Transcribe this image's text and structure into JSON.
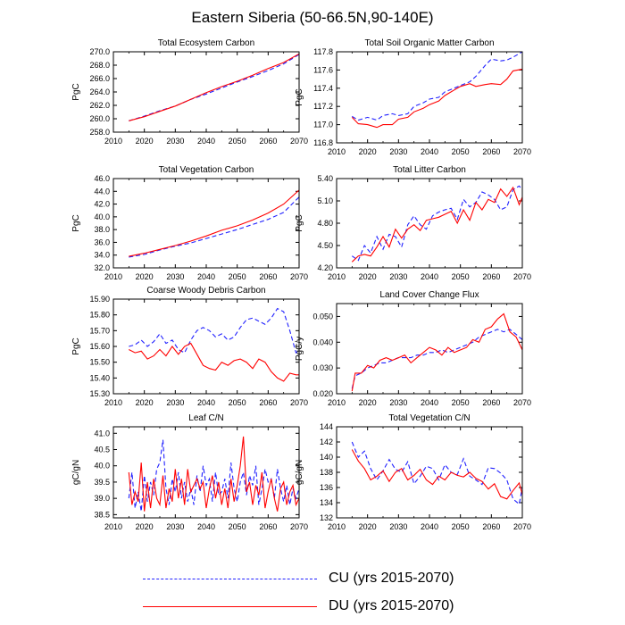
{
  "figure": {
    "title": "Eastern Siberia (50-66.5N,90-140E)",
    "series_styles": {
      "CU": {
        "color": "#2121ff",
        "dash": "dashed"
      },
      "DU": {
        "color": "#ff0000",
        "dash": "solid"
      }
    },
    "legend": [
      {
        "key": "CU",
        "label": "CU (yrs 2015-2070)"
      },
      {
        "key": "DU",
        "label": "DU (yrs 2015-2070)"
      }
    ]
  },
  "chart_data": [
    {
      "type": "line",
      "title": "Total Ecosystem Carbon",
      "xlabel": "",
      "ylabel": "PgC",
      "xlim": [
        2010,
        2070
      ],
      "xticks": [
        2010,
        2020,
        2030,
        2040,
        2050,
        2060,
        2070
      ],
      "ylim": [
        258,
        270
      ],
      "yticks": [
        "258.0",
        "260.0",
        "262.0",
        "264.0",
        "266.0",
        "268.0",
        "270.0"
      ],
      "x": [
        2015,
        2020,
        2025,
        2030,
        2035,
        2040,
        2045,
        2050,
        2055,
        2060,
        2065,
        2070
      ],
      "series": [
        {
          "name": "CU",
          "values": [
            259.7,
            260.4,
            261.2,
            261.9,
            262.9,
            263.7,
            264.6,
            265.5,
            266.3,
            267.2,
            268.2,
            269.6
          ]
        },
        {
          "name": "DU",
          "values": [
            259.7,
            260.3,
            261.1,
            261.9,
            262.9,
            263.9,
            264.8,
            265.6,
            266.5,
            267.5,
            268.4,
            269.7
          ]
        }
      ]
    },
    {
      "type": "line",
      "title": "Total Soil Organic Matter Carbon",
      "xlabel": "",
      "ylabel": "PgC",
      "xlim": [
        2010,
        2070
      ],
      "xticks": [
        2010,
        2020,
        2030,
        2040,
        2050,
        2060,
        2070
      ],
      "ylim": [
        116.8,
        117.8
      ],
      "yticks": [
        "116.8",
        "117.0",
        "117.2",
        "117.4",
        "117.6",
        "117.8"
      ],
      "x": [
        2015,
        2017,
        2020,
        2023,
        2025,
        2028,
        2030,
        2033,
        2035,
        2038,
        2040,
        2043,
        2045,
        2048,
        2050,
        2053,
        2055,
        2058,
        2060,
        2063,
        2065,
        2067,
        2070
      ],
      "series": [
        {
          "name": "CU",
          "values": [
            117.09,
            117.05,
            117.08,
            117.05,
            117.1,
            117.12,
            117.1,
            117.12,
            117.2,
            117.24,
            117.28,
            117.3,
            117.36,
            117.4,
            117.43,
            117.47,
            117.53,
            117.65,
            117.72,
            117.7,
            117.71,
            117.74,
            117.8
          ]
        },
        {
          "name": "DU",
          "values": [
            117.08,
            117.01,
            117.0,
            116.97,
            117.0,
            117.0,
            117.06,
            117.08,
            117.14,
            117.18,
            117.22,
            117.26,
            117.32,
            117.38,
            117.42,
            117.45,
            117.42,
            117.44,
            117.45,
            117.44,
            117.5,
            117.59,
            117.61
          ]
        }
      ]
    },
    {
      "type": "line",
      "title": "Total Vegetation Carbon",
      "xlabel": "",
      "ylabel": "PgC",
      "xlim": [
        2010,
        2070
      ],
      "xticks": [
        2010,
        2020,
        2030,
        2040,
        2050,
        2060,
        2070
      ],
      "ylim": [
        32,
        46
      ],
      "yticks": [
        "32.0",
        "34.0",
        "36.0",
        "38.0",
        "40.0",
        "42.0",
        "44.0",
        "46.0"
      ],
      "x": [
        2015,
        2020,
        2025,
        2030,
        2035,
        2040,
        2045,
        2050,
        2055,
        2060,
        2065,
        2070
      ],
      "series": [
        {
          "name": "CU",
          "values": [
            33.7,
            34.1,
            34.8,
            35.4,
            35.9,
            36.6,
            37.3,
            38.0,
            38.8,
            39.6,
            40.7,
            43.1
          ]
        },
        {
          "name": "DU",
          "values": [
            33.8,
            34.3,
            34.9,
            35.5,
            36.2,
            37.0,
            37.9,
            38.6,
            39.5,
            40.6,
            42.0,
            44.2
          ]
        }
      ]
    },
    {
      "type": "line",
      "title": "Total Litter Carbon",
      "xlabel": "",
      "ylabel": "PgC",
      "xlim": [
        2010,
        2070
      ],
      "xticks": [
        2010,
        2020,
        2030,
        2040,
        2050,
        2060,
        2070
      ],
      "ylim": [
        4.2,
        5.4
      ],
      "yticks": [
        "4.20",
        "4.50",
        "4.80",
        "5.10",
        "5.40"
      ],
      "x": [
        2015,
        2017,
        2019,
        2021,
        2023,
        2025,
        2027,
        2029,
        2031,
        2033,
        2035,
        2037,
        2039,
        2041,
        2043,
        2045,
        2047,
        2049,
        2051,
        2053,
        2055,
        2057,
        2059,
        2061,
        2063,
        2065,
        2067,
        2069,
        2070
      ],
      "series": [
        {
          "name": "CU",
          "values": [
            4.36,
            4.3,
            4.5,
            4.4,
            4.62,
            4.45,
            4.65,
            4.62,
            4.48,
            4.78,
            4.9,
            4.78,
            4.72,
            4.9,
            4.95,
            4.98,
            5.0,
            4.85,
            5.12,
            5.02,
            5.08,
            5.22,
            5.18,
            5.12,
            4.98,
            5.02,
            5.25,
            5.3,
            5.25
          ]
        },
        {
          "name": "DU",
          "values": [
            4.28,
            4.36,
            4.38,
            4.36,
            4.48,
            4.62,
            4.48,
            4.72,
            4.6,
            4.72,
            4.78,
            4.7,
            4.84,
            4.86,
            4.88,
            4.92,
            4.96,
            4.8,
            4.98,
            4.84,
            5.08,
            4.98,
            5.12,
            5.08,
            5.26,
            5.16,
            5.28,
            5.05,
            5.15
          ]
        }
      ]
    },
    {
      "type": "line",
      "title": "Coarse Woody Debris Carbon",
      "xlabel": "",
      "ylabel": "PgC",
      "xlim": [
        2010,
        2070
      ],
      "xticks": [
        2010,
        2020,
        2030,
        2040,
        2050,
        2060,
        2070
      ],
      "ylim": [
        15.3,
        15.9
      ],
      "yticks": [
        "15.30",
        "15.40",
        "15.50",
        "15.60",
        "15.70",
        "15.80",
        "15.90"
      ],
      "x": [
        2015,
        2017,
        2019,
        2021,
        2023,
        2025,
        2027,
        2029,
        2031,
        2033,
        2035,
        2037,
        2039,
        2041,
        2043,
        2045,
        2047,
        2049,
        2051,
        2053,
        2055,
        2057,
        2059,
        2061,
        2063,
        2065,
        2067,
        2069,
        2070
      ],
      "series": [
        {
          "name": "CU",
          "values": [
            15.6,
            15.61,
            15.64,
            15.6,
            15.63,
            15.68,
            15.62,
            15.64,
            15.58,
            15.56,
            15.64,
            15.7,
            15.72,
            15.7,
            15.66,
            15.68,
            15.64,
            15.66,
            15.72,
            15.77,
            15.78,
            15.76,
            15.74,
            15.78,
            15.84,
            15.82,
            15.7,
            15.56,
            15.58
          ]
        },
        {
          "name": "DU",
          "values": [
            15.58,
            15.56,
            15.57,
            15.52,
            15.54,
            15.58,
            15.54,
            15.6,
            15.55,
            15.6,
            15.62,
            15.55,
            15.48,
            15.46,
            15.45,
            15.5,
            15.48,
            15.51,
            15.52,
            15.5,
            15.46,
            15.52,
            15.5,
            15.44,
            15.4,
            15.38,
            15.43,
            15.42,
            15.42
          ]
        }
      ]
    },
    {
      "type": "line",
      "title": "Land Cover Change Flux",
      "xlabel": "",
      "ylabel": "PgC/y",
      "xlim": [
        2010,
        2070
      ],
      "xticks": [
        2010,
        2020,
        2030,
        2040,
        2050,
        2060,
        2070
      ],
      "ylim": [
        0.02,
        0.055
      ],
      "yticks": [
        "0.020",
        "0.030",
        "0.040",
        "0.050"
      ],
      "x": [
        2015,
        2016,
        2018,
        2020,
        2022,
        2024,
        2026,
        2028,
        2030,
        2032,
        2034,
        2036,
        2038,
        2040,
        2042,
        2044,
        2046,
        2048,
        2050,
        2052,
        2054,
        2056,
        2058,
        2060,
        2062,
        2064,
        2066,
        2068,
        2070
      ],
      "series": [
        {
          "name": "CU",
          "values": [
            0.022,
            0.027,
            0.028,
            0.03,
            0.031,
            0.032,
            0.032,
            0.033,
            0.034,
            0.034,
            0.034,
            0.035,
            0.035,
            0.036,
            0.036,
            0.037,
            0.036,
            0.037,
            0.038,
            0.039,
            0.04,
            0.042,
            0.043,
            0.044,
            0.045,
            0.044,
            0.045,
            0.043,
            0.041
          ]
        },
        {
          "name": "DU",
          "values": [
            0.021,
            0.028,
            0.028,
            0.031,
            0.03,
            0.033,
            0.034,
            0.033,
            0.034,
            0.035,
            0.032,
            0.034,
            0.036,
            0.038,
            0.037,
            0.035,
            0.038,
            0.036,
            0.037,
            0.038,
            0.041,
            0.04,
            0.045,
            0.046,
            0.049,
            0.051,
            0.044,
            0.042,
            0.037
          ]
        }
      ]
    },
    {
      "type": "line",
      "title": "Leaf C/N",
      "xlabel": "",
      "ylabel": "gC/gN",
      "xlim": [
        2010,
        2070
      ],
      "xticks": [
        2010,
        2020,
        2030,
        2040,
        2050,
        2060,
        2070
      ],
      "ylim": [
        38.4,
        41.2
      ],
      "yticks": [
        "38.5",
        "39.0",
        "39.5",
        "40.0",
        "40.5",
        "41.0"
      ],
      "x": [
        2015,
        2016,
        2017,
        2018,
        2019,
        2020,
        2021,
        2022,
        2023,
        2024,
        2025,
        2026,
        2027,
        2028,
        2029,
        2030,
        2031,
        2032,
        2033,
        2034,
        2035,
        2036,
        2037,
        2038,
        2039,
        2040,
        2041,
        2042,
        2043,
        2044,
        2045,
        2046,
        2047,
        2048,
        2049,
        2050,
        2051,
        2052,
        2053,
        2054,
        2055,
        2056,
        2057,
        2058,
        2059,
        2060,
        2061,
        2062,
        2063,
        2064,
        2065,
        2066,
        2067,
        2068,
        2069,
        2070
      ],
      "series": [
        {
          "name": "CU",
          "values": [
            39.0,
            39.8,
            38.7,
            39.2,
            38.6,
            39.7,
            38.9,
            39.5,
            39.1,
            39.9,
            40.1,
            40.8,
            39.3,
            38.8,
            39.6,
            39.2,
            39.8,
            39.0,
            39.5,
            38.9,
            39.3,
            38.8,
            39.7,
            39.2,
            40.0,
            39.4,
            39.6,
            38.9,
            39.8,
            39.1,
            39.2,
            39.6,
            39.0,
            40.1,
            39.3,
            38.9,
            39.5,
            39.8,
            39.1,
            39.7,
            39.4,
            40.0,
            38.8,
            39.3,
            39.9,
            39.5,
            39.6,
            39.0,
            39.9,
            39.3,
            38.9,
            39.4,
            38.8,
            39.3,
            39.0,
            39.3
          ]
        },
        {
          "name": "DU",
          "values": [
            39.8,
            38.8,
            39.2,
            38.9,
            40.1,
            38.6,
            39.5,
            38.7,
            39.6,
            39.0,
            38.8,
            39.7,
            38.7,
            39.3,
            38.9,
            39.9,
            39.0,
            39.6,
            38.8,
            39.9,
            39.2,
            39.4,
            39.6,
            39.3,
            39.5,
            38.7,
            39.3,
            39.7,
            39.0,
            39.5,
            38.8,
            39.3,
            38.7,
            39.6,
            38.9,
            39.4,
            40.0,
            40.9,
            39.2,
            39.5,
            38.8,
            39.4,
            39.1,
            39.8,
            38.7,
            39.2,
            39.6,
            39.0,
            38.6,
            39.3,
            39.5,
            38.8,
            39.2,
            39.4,
            38.8,
            39.0
          ]
        }
      ]
    },
    {
      "type": "line",
      "title": "Total Vegetation C/N",
      "xlabel": "",
      "ylabel": "gC/gN",
      "xlim": [
        2010,
        2070
      ],
      "xticks": [
        2010,
        2020,
        2030,
        2040,
        2050,
        2060,
        2070
      ],
      "ylim": [
        132,
        144
      ],
      "yticks": [
        "132",
        "134",
        "136",
        "138",
        "140",
        "142",
        "144"
      ],
      "x": [
        2015,
        2017,
        2019,
        2021,
        2023,
        2025,
        2027,
        2029,
        2031,
        2033,
        2035,
        2037,
        2039,
        2041,
        2043,
        2045,
        2047,
        2049,
        2051,
        2053,
        2055,
        2057,
        2059,
        2061,
        2063,
        2065,
        2067,
        2069,
        2070
      ],
      "series": [
        {
          "name": "CU",
          "values": [
            142.0,
            140.0,
            140.8,
            138.5,
            137.0,
            138.2,
            139.7,
            138.4,
            138.0,
            139.4,
            136.5,
            137.5,
            138.8,
            138.5,
            137.0,
            139.0,
            138.0,
            137.7,
            139.8,
            137.5,
            137.0,
            136.4,
            138.6,
            138.5,
            137.9,
            137.0,
            134.5,
            133.8,
            136.0
          ]
        },
        {
          "name": "DU",
          "values": [
            141.0,
            139.5,
            138.5,
            137.0,
            137.5,
            138.2,
            136.8,
            138.0,
            138.5,
            137.0,
            137.6,
            138.4,
            137.0,
            136.4,
            137.5,
            137.0,
            138.0,
            137.6,
            137.4,
            138.0,
            137.2,
            136.8,
            135.8,
            136.5,
            134.8,
            134.5,
            135.6,
            136.6,
            135.1
          ]
        }
      ]
    }
  ]
}
